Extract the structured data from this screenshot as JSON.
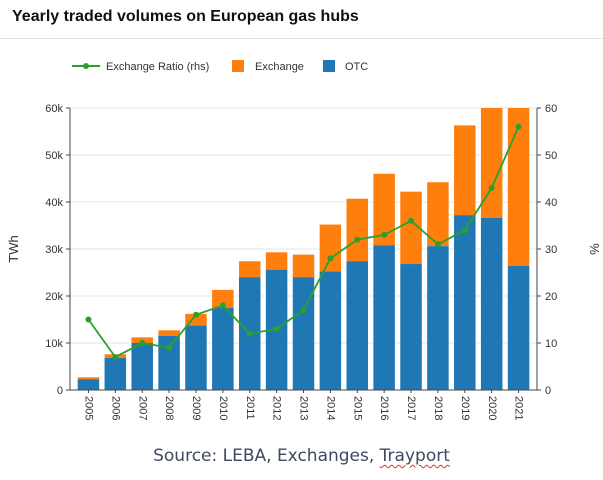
{
  "chart_data": {
    "type": "bar",
    "title": "Yearly traded volumes on European gas hubs",
    "ylabel": "TWh",
    "y2label": "%",
    "ylim": [
      0,
      60000
    ],
    "y2lim": [
      0,
      60
    ],
    "yticks": [
      "0",
      "10k",
      "20k",
      "30k",
      "40k",
      "50k",
      "60k"
    ],
    "y2ticks": [
      "0",
      "10",
      "20",
      "30",
      "40",
      "50",
      "60"
    ],
    "legend": [
      "Exchange Ratio (rhs)",
      "Exchange",
      "OTC"
    ],
    "categories": [
      "2005",
      "2006",
      "2007",
      "2008",
      "2009",
      "2010",
      "2011",
      "2012",
      "2013",
      "2014",
      "2015",
      "2016",
      "2017",
      "2018",
      "2019",
      "2020",
      "2021"
    ],
    "series": [
      {
        "name": "OTC",
        "kind": "bar",
        "color": "#1f77b4",
        "values": [
          2300,
          6800,
          10000,
          11500,
          13700,
          17500,
          24000,
          25600,
          24000,
          25200,
          27400,
          30800,
          26800,
          30600,
          37200,
          36600,
          26400
        ]
      },
      {
        "name": "Exchange",
        "kind": "bar",
        "color": "#ff7f0e",
        "values": [
          400,
          800,
          1200,
          1200,
          2500,
          3800,
          3400,
          3700,
          4800,
          10000,
          13300,
          15200,
          15400,
          13600,
          19100,
          23400,
          33600
        ]
      },
      {
        "name": "Exchange Ratio (rhs)",
        "kind": "line",
        "axis": "right",
        "color": "#2ca02c",
        "values": [
          15,
          7,
          10,
          9,
          16,
          18,
          12,
          13,
          17,
          28,
          32,
          33,
          36,
          31,
          34,
          43,
          56
        ]
      }
    ]
  },
  "source": {
    "prefix": "Source: LEBA, Exchanges, ",
    "last_word": "Trayport"
  }
}
